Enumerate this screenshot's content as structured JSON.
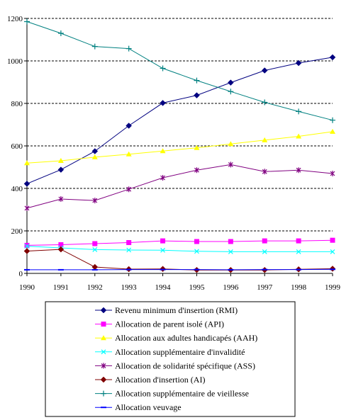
{
  "chart_data": {
    "type": "line",
    "title": "",
    "xlabel": "",
    "ylabel": "",
    "x": [
      "1990",
      "1991",
      "1992",
      "1993",
      "1994",
      "1995",
      "1996",
      "1997",
      "1998",
      "1999"
    ],
    "yticks": [
      "0",
      "200",
      "400",
      "600",
      "800",
      "1000",
      "1200"
    ],
    "ylim": [
      0,
      1200
    ],
    "grid": "horizontal dashed",
    "legend_position": "bottom",
    "series": [
      {
        "name": "Revenu minimum d'insertion (RMI)",
        "color": "#000080",
        "marker": "diamond",
        "values": [
          422,
          488,
          575,
          695,
          802,
          838,
          898,
          955,
          990,
          1017
        ]
      },
      {
        "name": "Allocation de parent isolé (API)",
        "color": "#ff00ff",
        "marker": "square",
        "values": [
          132,
          135,
          140,
          145,
          153,
          150,
          150,
          153,
          153,
          156
        ]
      },
      {
        "name": "Allocation aux adultes handicapés (AAH)",
        "color": "#ffff00",
        "marker": "triangle",
        "values": [
          519,
          530,
          547,
          561,
          576,
          591,
          609,
          627,
          645,
          667
        ]
      },
      {
        "name": "Allocation supplémentaire d'invalidité",
        "color": "#00ffff",
        "marker": "x",
        "values": [
          128,
          120,
          112,
          110,
          109,
          104,
          102,
          102,
          102,
          102
        ]
      },
      {
        "name": "Allocation de solidarité spécifique (ASS)",
        "color": "#800080",
        "marker": "star",
        "values": [
          307,
          350,
          343,
          396,
          450,
          486,
          512,
          479,
          486,
          470
        ]
      },
      {
        "name": "Allocation d'insertion (AI)",
        "color": "#800000",
        "marker": "diamond",
        "values": [
          105,
          113,
          30,
          20,
          21,
          16,
          16,
          16,
          19,
          22
        ]
      },
      {
        "name": "Allocation supplémentaire de vieillesse",
        "color": "#008080",
        "marker": "plus",
        "values": [
          1185,
          1130,
          1068,
          1058,
          965,
          908,
          856,
          805,
          762,
          721
        ]
      },
      {
        "name": "Allocation veuvage",
        "color": "#0000ff",
        "marker": "dash",
        "values": [
          17,
          17,
          17,
          18,
          18,
          18,
          17,
          18,
          18,
          19
        ]
      }
    ]
  }
}
